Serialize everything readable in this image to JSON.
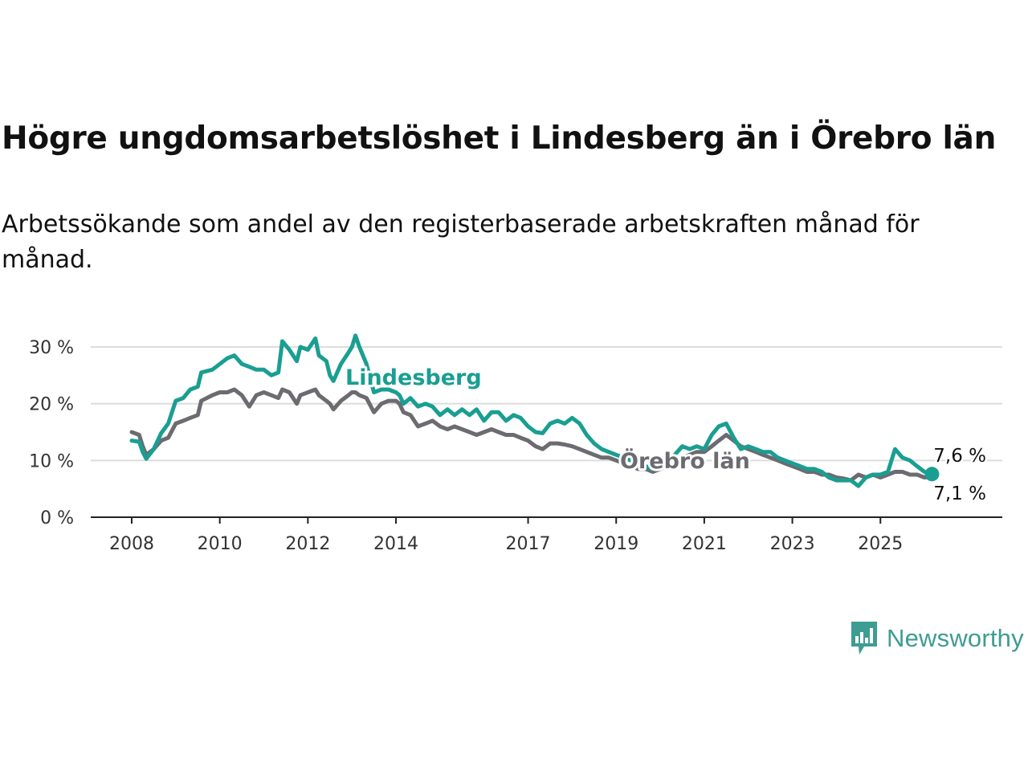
{
  "title": "Högre ungdomsarbetslöshet i Lindesberg än i Örebro län",
  "subtitle": "Arbetssökande som andel av den registerbaserade arbetskraften månad för månad.",
  "brand": {
    "name": "Newsworthy",
    "icon": "newsworthy-logo-icon",
    "color": "#3e9c93"
  },
  "chart_data": {
    "type": "line",
    "title": "Högre ungdomsarbetslöshet i Lindesberg än i Örebro län",
    "subtitle": "Arbetssökande som andel av den registerbaserade arbetskraften månad för månad.",
    "xlabel": "",
    "ylabel": "",
    "y_unit": "%",
    "ylim": [
      0,
      30
    ],
    "y_ticks": [
      0,
      10,
      20,
      30
    ],
    "y_tick_labels": [
      "0 %",
      "10 %",
      "20 %",
      "30 %"
    ],
    "x_ticks": [
      2008,
      2010,
      2012,
      2014,
      2017,
      2019,
      2021,
      2023,
      2025
    ],
    "x_tick_labels": [
      "2008",
      "2010",
      "2012",
      "2014",
      "2017",
      "2019",
      "2021",
      "2023",
      "2025"
    ],
    "grid": true,
    "legend": "direct labels on lines",
    "series": [
      {
        "name": "Lindesberg",
        "color": "#1a9e92",
        "end_label": "7,6 %",
        "points": [
          [
            2008.0,
            13.5
          ],
          [
            2008.17,
            13.3
          ],
          [
            2008.25,
            11.5
          ],
          [
            2008.33,
            10.3
          ],
          [
            2008.5,
            12.0
          ],
          [
            2008.67,
            14.8
          ],
          [
            2008.83,
            16.5
          ],
          [
            2009.0,
            20.5
          ],
          [
            2009.17,
            21.0
          ],
          [
            2009.33,
            22.5
          ],
          [
            2009.5,
            23.0
          ],
          [
            2009.58,
            25.5
          ],
          [
            2009.83,
            26.0
          ],
          [
            2010.0,
            27.0
          ],
          [
            2010.17,
            28.0
          ],
          [
            2010.33,
            28.5
          ],
          [
            2010.5,
            27.0
          ],
          [
            2010.67,
            26.5
          ],
          [
            2010.83,
            26.0
          ],
          [
            2011.0,
            26.0
          ],
          [
            2011.17,
            25.0
          ],
          [
            2011.33,
            25.5
          ],
          [
            2011.42,
            31.0
          ],
          [
            2011.58,
            29.5
          ],
          [
            2011.75,
            27.5
          ],
          [
            2011.83,
            30.0
          ],
          [
            2012.0,
            29.5
          ],
          [
            2012.17,
            31.5
          ],
          [
            2012.25,
            28.5
          ],
          [
            2012.42,
            27.5
          ],
          [
            2012.5,
            25.0
          ],
          [
            2012.58,
            24.0
          ],
          [
            2012.75,
            27.0
          ],
          [
            2012.92,
            29.0
          ],
          [
            2013.0,
            30.0
          ],
          [
            2013.08,
            32.0
          ],
          [
            2013.17,
            30.0
          ],
          [
            2013.33,
            27.0
          ],
          [
            2013.5,
            22.0
          ],
          [
            2013.67,
            22.5
          ],
          [
            2013.83,
            22.5
          ],
          [
            2014.0,
            22.0
          ],
          [
            2014.08,
            21.5
          ],
          [
            2014.17,
            20.0
          ],
          [
            2014.33,
            21.0
          ],
          [
            2014.5,
            19.5
          ],
          [
            2014.67,
            20.0
          ],
          [
            2014.83,
            19.5
          ],
          [
            2015.0,
            18.0
          ],
          [
            2015.17,
            19.0
          ],
          [
            2015.33,
            18.0
          ],
          [
            2015.5,
            19.0
          ],
          [
            2015.67,
            18.0
          ],
          [
            2015.83,
            19.0
          ],
          [
            2016.0,
            17.0
          ],
          [
            2016.17,
            18.5
          ],
          [
            2016.33,
            18.5
          ],
          [
            2016.5,
            17.0
          ],
          [
            2016.67,
            18.0
          ],
          [
            2016.83,
            17.5
          ],
          [
            2017.0,
            16.0
          ],
          [
            2017.17,
            15.0
          ],
          [
            2017.33,
            14.8
          ],
          [
            2017.5,
            16.5
          ],
          [
            2017.67,
            17.0
          ],
          [
            2017.83,
            16.5
          ],
          [
            2018.0,
            17.5
          ],
          [
            2018.17,
            16.5
          ],
          [
            2018.33,
            14.5
          ],
          [
            2018.5,
            13.0
          ],
          [
            2018.67,
            12.0
          ],
          [
            2018.83,
            11.5
          ],
          [
            2019.0,
            11.0
          ],
          [
            2019.17,
            10.5
          ],
          [
            2019.33,
            10.0
          ],
          [
            2019.5,
            9.5
          ],
          [
            2019.67,
            9.0
          ],
          [
            2019.83,
            8.5
          ],
          [
            2020.0,
            9.0
          ],
          [
            2020.17,
            10.0
          ],
          [
            2020.33,
            11.0
          ],
          [
            2020.5,
            12.5
          ],
          [
            2020.67,
            12.0
          ],
          [
            2020.83,
            12.5
          ],
          [
            2021.0,
            12.0
          ],
          [
            2021.17,
            14.5
          ],
          [
            2021.33,
            16.0
          ],
          [
            2021.5,
            16.5
          ],
          [
            2021.67,
            14.0
          ],
          [
            2021.83,
            12.0
          ],
          [
            2022.0,
            12.5
          ],
          [
            2022.17,
            12.0
          ],
          [
            2022.33,
            11.5
          ],
          [
            2022.5,
            11.5
          ],
          [
            2022.67,
            10.5
          ],
          [
            2022.83,
            10.0
          ],
          [
            2023.0,
            9.5
          ],
          [
            2023.17,
            9.0
          ],
          [
            2023.33,
            8.5
          ],
          [
            2023.5,
            8.5
          ],
          [
            2023.67,
            8.0
          ],
          [
            2023.83,
            7.0
          ],
          [
            2024.0,
            6.5
          ],
          [
            2024.17,
            6.5
          ],
          [
            2024.33,
            6.5
          ],
          [
            2024.5,
            5.5
          ],
          [
            2024.67,
            7.0
          ],
          [
            2024.83,
            7.5
          ],
          [
            2025.0,
            7.5
          ],
          [
            2025.17,
            8.0
          ],
          [
            2025.33,
            12.0
          ],
          [
            2025.5,
            10.5
          ],
          [
            2025.67,
            10.0
          ],
          [
            2025.83,
            9.0
          ],
          [
            2026.0,
            8.0
          ],
          [
            2026.17,
            7.6
          ]
        ]
      },
      {
        "name": "Örebro län",
        "color": "#6c6b70",
        "end_label": "7,1 %",
        "points": [
          [
            2008.0,
            15.0
          ],
          [
            2008.17,
            14.5
          ],
          [
            2008.25,
            12.5
          ],
          [
            2008.33,
            11.0
          ],
          [
            2008.5,
            12.0
          ],
          [
            2008.67,
            13.5
          ],
          [
            2008.83,
            14.0
          ],
          [
            2009.0,
            16.5
          ],
          [
            2009.17,
            17.0
          ],
          [
            2009.33,
            17.5
          ],
          [
            2009.5,
            18.0
          ],
          [
            2009.58,
            20.5
          ],
          [
            2009.83,
            21.5
          ],
          [
            2010.0,
            22.0
          ],
          [
            2010.17,
            22.0
          ],
          [
            2010.33,
            22.5
          ],
          [
            2010.5,
            21.5
          ],
          [
            2010.67,
            19.5
          ],
          [
            2010.83,
            21.5
          ],
          [
            2011.0,
            22.0
          ],
          [
            2011.17,
            21.5
          ],
          [
            2011.33,
            21.0
          ],
          [
            2011.42,
            22.5
          ],
          [
            2011.58,
            22.0
          ],
          [
            2011.75,
            20.0
          ],
          [
            2011.83,
            21.5
          ],
          [
            2012.0,
            22.0
          ],
          [
            2012.17,
            22.5
          ],
          [
            2012.25,
            21.5
          ],
          [
            2012.42,
            20.5
          ],
          [
            2012.5,
            20.0
          ],
          [
            2012.58,
            19.0
          ],
          [
            2012.75,
            20.5
          ],
          [
            2012.92,
            21.5
          ],
          [
            2013.0,
            22.0
          ],
          [
            2013.08,
            22.0
          ],
          [
            2013.17,
            21.5
          ],
          [
            2013.33,
            21.0
          ],
          [
            2013.5,
            18.5
          ],
          [
            2013.67,
            20.0
          ],
          [
            2013.83,
            20.5
          ],
          [
            2014.0,
            20.5
          ],
          [
            2014.08,
            20.0
          ],
          [
            2014.17,
            18.5
          ],
          [
            2014.33,
            18.0
          ],
          [
            2014.5,
            16.0
          ],
          [
            2014.67,
            16.5
          ],
          [
            2014.83,
            17.0
          ],
          [
            2015.0,
            16.0
          ],
          [
            2015.17,
            15.5
          ],
          [
            2015.33,
            16.0
          ],
          [
            2015.5,
            15.5
          ],
          [
            2015.67,
            15.0
          ],
          [
            2015.83,
            14.5
          ],
          [
            2016.0,
            15.0
          ],
          [
            2016.17,
            15.5
          ],
          [
            2016.33,
            15.0
          ],
          [
            2016.5,
            14.5
          ],
          [
            2016.67,
            14.5
          ],
          [
            2016.83,
            14.0
          ],
          [
            2017.0,
            13.5
          ],
          [
            2017.17,
            12.5
          ],
          [
            2017.33,
            12.0
          ],
          [
            2017.5,
            13.0
          ],
          [
            2017.67,
            13.0
          ],
          [
            2017.83,
            12.8
          ],
          [
            2018.0,
            12.5
          ],
          [
            2018.17,
            12.0
          ],
          [
            2018.33,
            11.5
          ],
          [
            2018.5,
            11.0
          ],
          [
            2018.67,
            10.5
          ],
          [
            2018.83,
            10.5
          ],
          [
            2019.0,
            10.0
          ],
          [
            2019.17,
            9.5
          ],
          [
            2019.33,
            9.0
          ],
          [
            2019.5,
            8.5
          ],
          [
            2019.67,
            8.5
          ],
          [
            2019.83,
            8.0
          ],
          [
            2020.0,
            8.5
          ],
          [
            2020.17,
            9.0
          ],
          [
            2020.33,
            9.5
          ],
          [
            2020.5,
            10.5
          ],
          [
            2020.67,
            11.0
          ],
          [
            2020.83,
            11.5
          ],
          [
            2021.0,
            11.5
          ],
          [
            2021.17,
            12.5
          ],
          [
            2021.33,
            13.5
          ],
          [
            2021.5,
            14.5
          ],
          [
            2021.67,
            13.5
          ],
          [
            2021.83,
            12.5
          ],
          [
            2022.0,
            12.0
          ],
          [
            2022.17,
            11.5
          ],
          [
            2022.33,
            11.0
          ],
          [
            2022.5,
            10.5
          ],
          [
            2022.67,
            10.0
          ],
          [
            2022.83,
            9.5
          ],
          [
            2023.0,
            9.0
          ],
          [
            2023.17,
            8.5
          ],
          [
            2023.33,
            8.0
          ],
          [
            2023.5,
            8.0
          ],
          [
            2023.67,
            7.5
          ],
          [
            2023.83,
            7.5
          ],
          [
            2024.0,
            7.0
          ],
          [
            2024.17,
            6.8
          ],
          [
            2024.33,
            6.5
          ],
          [
            2024.5,
            7.5
          ],
          [
            2024.67,
            7.0
          ],
          [
            2024.83,
            7.5
          ],
          [
            2025.0,
            7.0
          ],
          [
            2025.17,
            7.5
          ],
          [
            2025.33,
            8.0
          ],
          [
            2025.5,
            8.0
          ],
          [
            2025.67,
            7.5
          ],
          [
            2025.83,
            7.5
          ],
          [
            2026.0,
            7.0
          ],
          [
            2026.17,
            7.1
          ]
        ]
      }
    ]
  }
}
